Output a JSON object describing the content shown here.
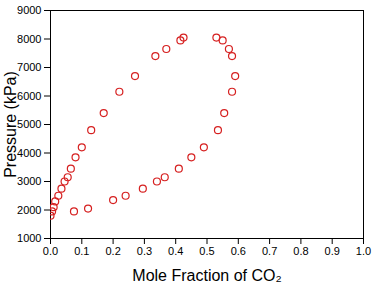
{
  "chart_data": {
    "type": "scatter",
    "x_label": "Mole Fraction of CO₂",
    "y_label": "Pressure (kPa)",
    "color": "#d62020",
    "marker": "circle",
    "grid": false,
    "xlim": [
      0,
      1
    ],
    "ylim": [
      1000,
      9000
    ],
    "xticks": [
      {
        "value": 0,
        "label": "0.0"
      },
      {
        "value": 0.1,
        "label": "0.1"
      },
      {
        "value": 0.2,
        "label": "0.2"
      },
      {
        "value": 0.3,
        "label": "0.3"
      },
      {
        "value": 0.4,
        "label": "0.4"
      },
      {
        "value": 0.5,
        "label": "0.5"
      },
      {
        "value": 0.6,
        "label": "0.6"
      },
      {
        "value": 0.7,
        "label": "0.7"
      },
      {
        "value": 0.8,
        "label": "0.8"
      },
      {
        "value": 0.9,
        "label": "0.9"
      },
      {
        "value": 1,
        "label": "1.0"
      }
    ],
    "yticks": [
      1000,
      2000,
      3000,
      4000,
      5000,
      6000,
      7000,
      8000,
      9000
    ],
    "x": [
      0.0,
      0.005,
      0.01,
      0.015,
      0.025,
      0.035,
      0.045,
      0.055,
      0.065,
      0.08,
      0.1,
      0.13,
      0.17,
      0.22,
      0.27,
      0.335,
      0.37,
      0.415,
      0.425,
      0.53,
      0.55,
      0.57,
      0.58,
      0.59,
      0.58,
      0.555,
      0.535,
      0.49,
      0.45,
      0.41,
      0.365,
      0.34,
      0.295,
      0.24,
      0.2,
      0.12,
      0.075
    ],
    "values": [
      1800,
      1950,
      2100,
      2300,
      2500,
      2750,
      3000,
      3150,
      3450,
      3850,
      4200,
      4800,
      5400,
      6150,
      6700,
      7400,
      7650,
      7950,
      8050,
      8050,
      7950,
      7650,
      7400,
      6700,
      6150,
      5400,
      4800,
      4200,
      3850,
      3450,
      3150,
      3000,
      2750,
      2500,
      2350,
      2050,
      1950
    ]
  }
}
